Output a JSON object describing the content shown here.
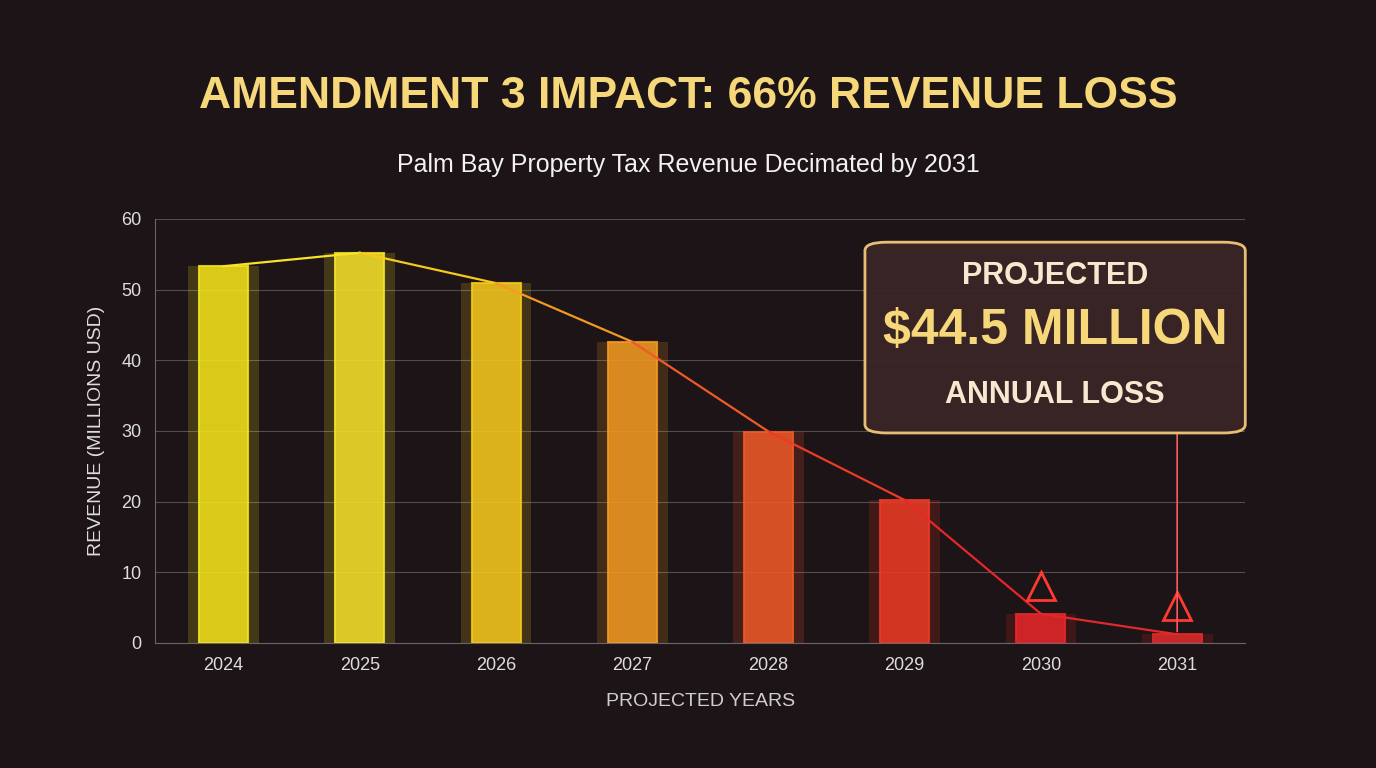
{
  "chart_data": {
    "type": "bar",
    "title": "AMENDMENT 3 IMPACT: 66% REVENUE LOSS",
    "subtitle": "Palm Bay Property Tax Revenue Decimated by 2031",
    "x_label": "PROJECTED YEARS",
    "y_label": "REVENUE (MILLIONS USD)",
    "categories": [
      "2024",
      "2025",
      "2026",
      "2027",
      "2028",
      "2029",
      "2030",
      "2031"
    ],
    "values": [
      53.3,
      55.2,
      50.9,
      42.6,
      29.9,
      20.2,
      4.1,
      1.2
    ],
    "colors": [
      "#f5e41a",
      "#f7e32a",
      "#f7c91e",
      "#f39a22",
      "#f05a28",
      "#ee3a26",
      "#e8262a",
      "#e02a2a"
    ],
    "ylim": [
      0,
      60
    ],
    "yticks": [
      0,
      10,
      20,
      30,
      40,
      50,
      60
    ],
    "grid": true,
    "annotation": "PROJECTED\n$44.5 MILLION\nANNUAL LOSS"
  }
}
